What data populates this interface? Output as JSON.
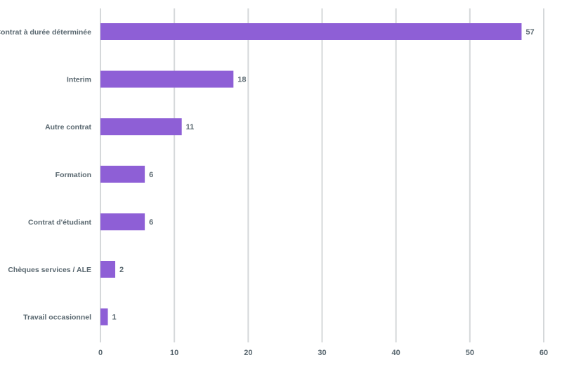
{
  "chart_data": {
    "type": "bar",
    "orientation": "horizontal",
    "categories": [
      "Contrat à durée déterminée",
      "Interim",
      "Autre contrat",
      "Formation",
      "Contrat d'étudiant",
      "Chèques services / ALE",
      "Travail occasionnel"
    ],
    "values": [
      57,
      18,
      11,
      6,
      6,
      2,
      1
    ],
    "title": "",
    "xlabel": "",
    "ylabel": "",
    "xlim": [
      0,
      60
    ],
    "x_ticks": [
      "0",
      "10",
      "20",
      "30",
      "40",
      "50",
      "60"
    ],
    "grid": true,
    "legend": "none",
    "data_labels": true,
    "colors": {
      "bar": "#8e5fd6",
      "grid": "#d5d8da",
      "text": "#5a6870"
    }
  }
}
